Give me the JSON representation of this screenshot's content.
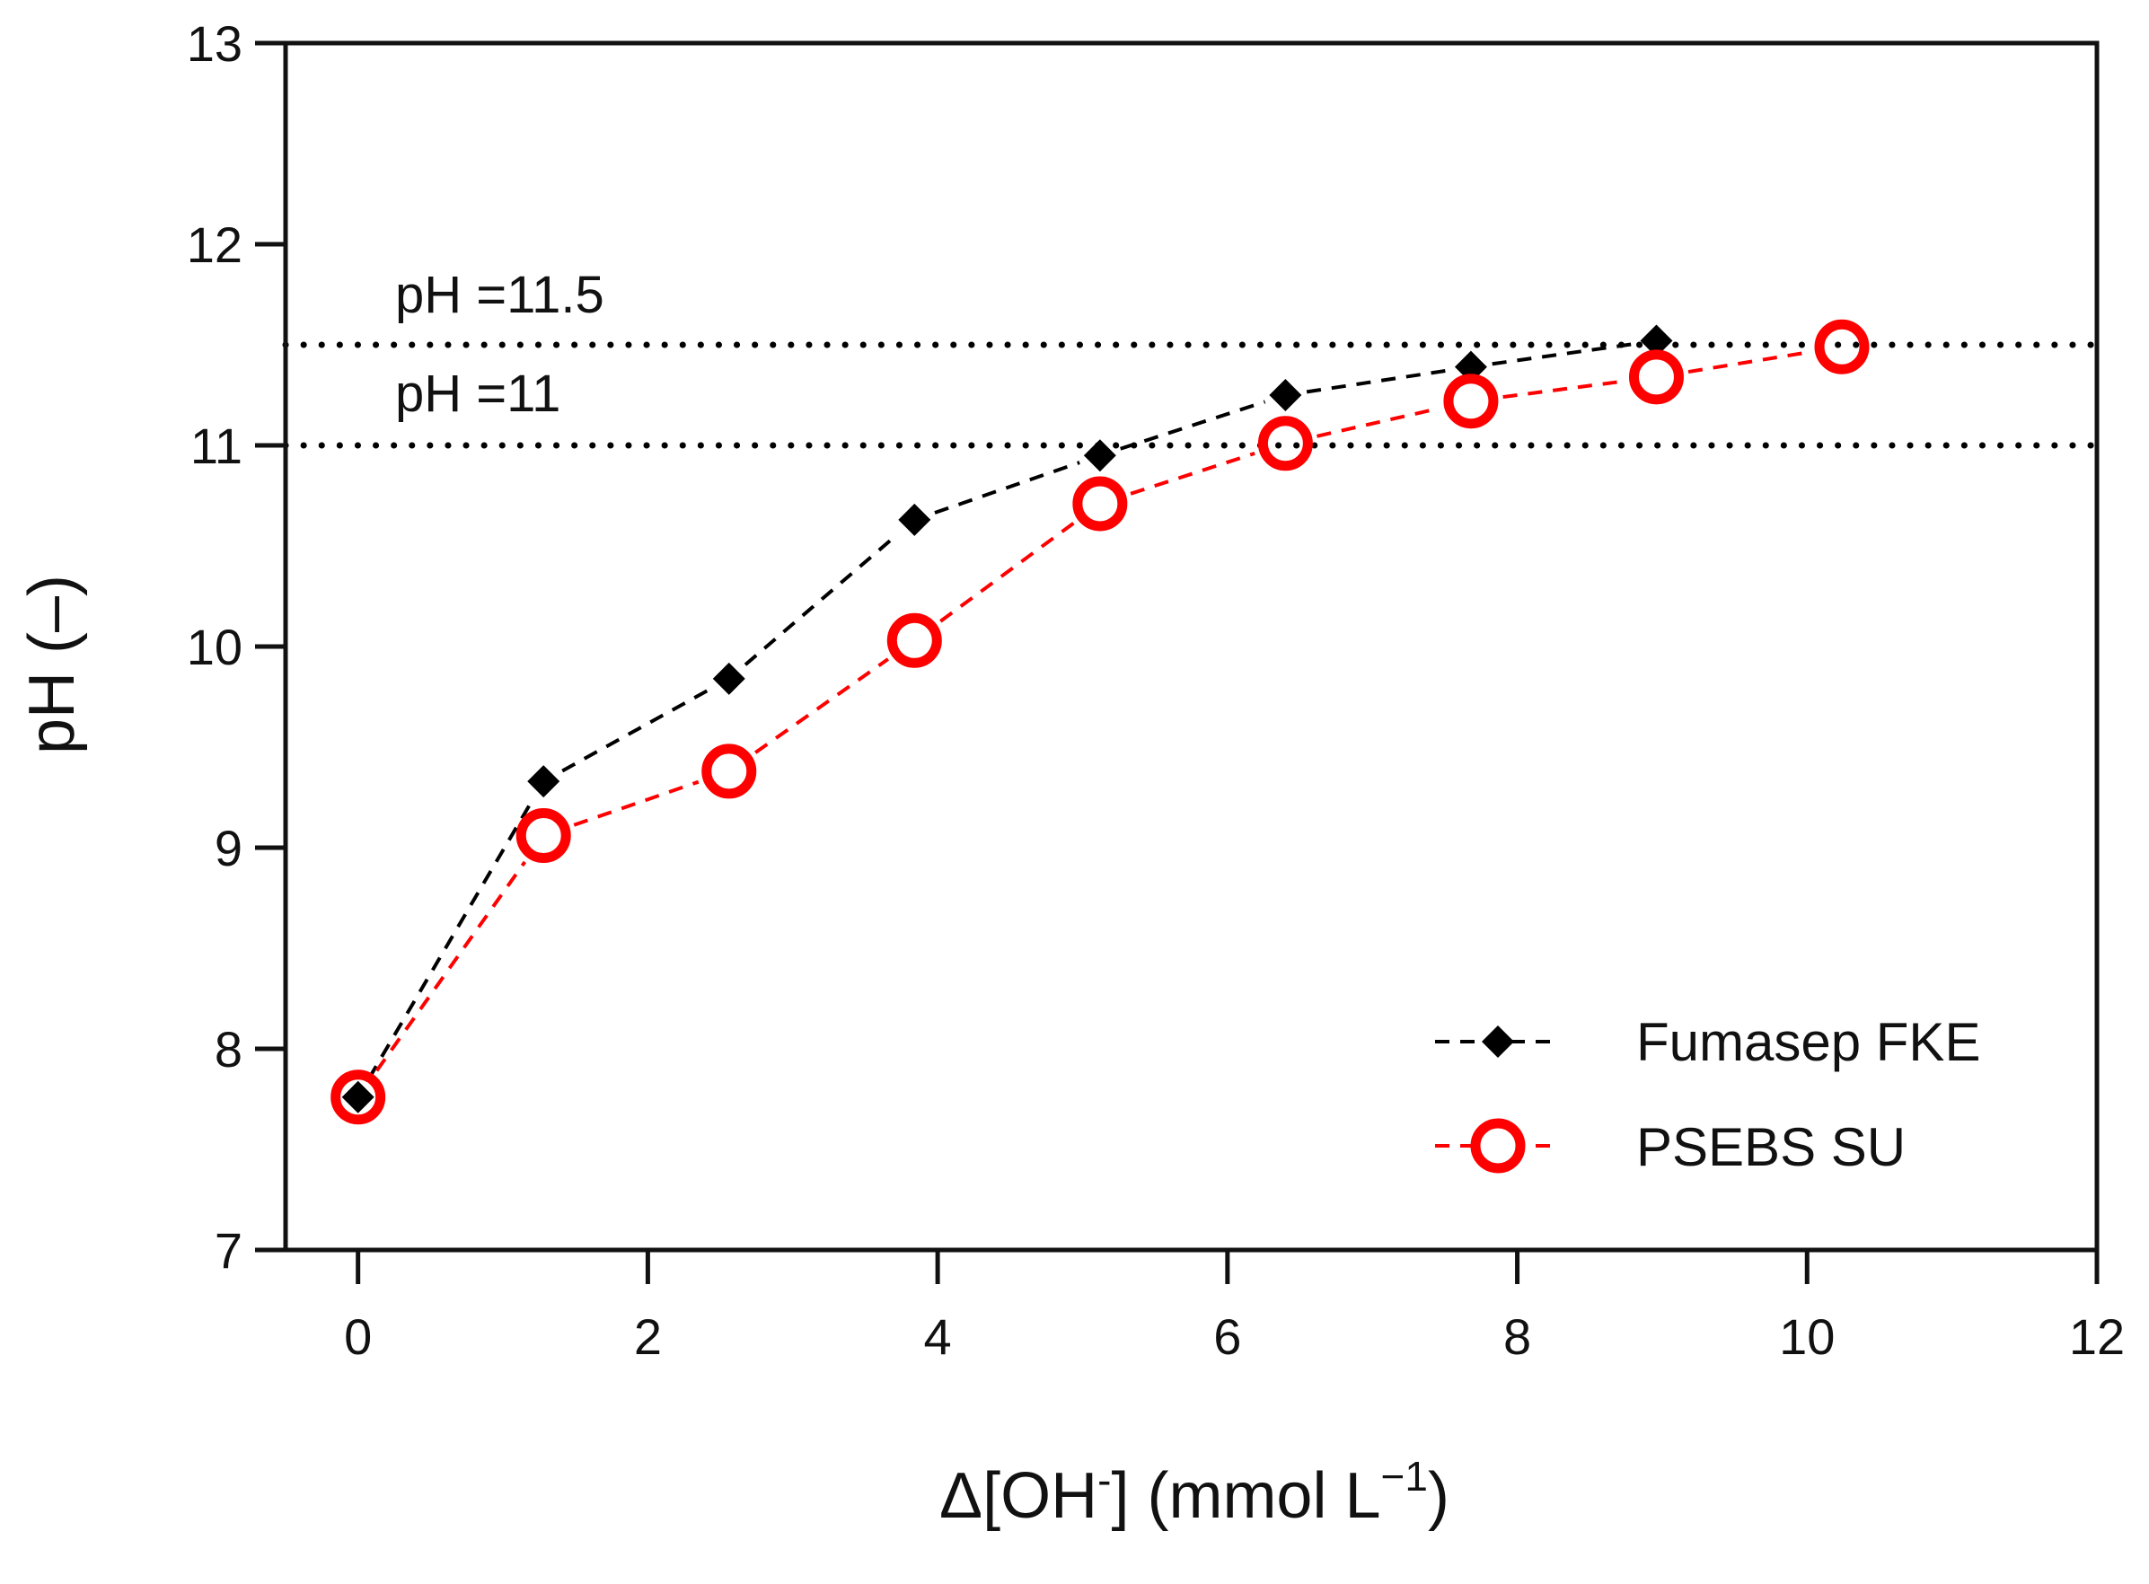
{
  "chart_data": {
    "type": "line",
    "title": "",
    "xlabel": {
      "prefix": "Δ[OH",
      "sup1": "-",
      "middle": "] (mmol L",
      "sup2": "−1",
      "suffix": ")"
    },
    "ylabel": "pH (–)",
    "xlim": [
      -0.5,
      12
    ],
    "ylim": [
      7,
      13
    ],
    "xticks": [
      0,
      2,
      4,
      6,
      8,
      10,
      12
    ],
    "yticks": [
      7,
      8,
      9,
      10,
      11,
      12,
      13
    ],
    "legend_position": "bottom-right",
    "series": [
      {
        "name": "Fumasep FKE",
        "marker": "diamond",
        "line": "dashed",
        "color": "#000000",
        "x": [
          0,
          1.28,
          2.56,
          3.84,
          5.12,
          6.4,
          7.68,
          8.96
        ],
        "y": [
          7.76,
          9.33,
          9.84,
          10.63,
          10.95,
          11.25,
          11.39,
          11.52
        ]
      },
      {
        "name": "PSEBS SU",
        "marker": "open-circle",
        "line": "dashed",
        "color": "#ff0000",
        "x": [
          0,
          1.28,
          2.56,
          3.84,
          5.12,
          6.4,
          7.68,
          8.96,
          10.24
        ],
        "y": [
          7.76,
          9.06,
          9.38,
          10.03,
          10.71,
          11.01,
          11.22,
          11.34,
          11.49
        ]
      }
    ],
    "reference_lines": [
      {
        "y": 11.5,
        "label": "pH =11.5"
      },
      {
        "y": 11,
        "label": "pH =11"
      }
    ]
  }
}
